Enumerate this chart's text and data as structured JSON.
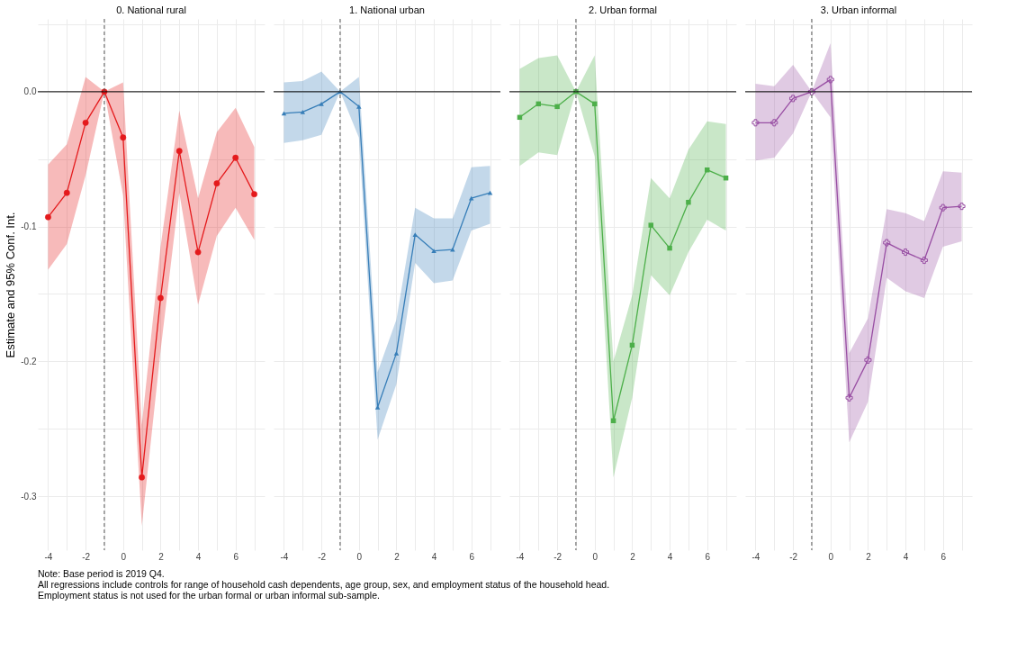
{
  "chart_data": [
    {
      "type": "line",
      "title": "0. National rural",
      "ylabel": "Estimate and 95% Conf. Int.",
      "xlim": [
        -4.55,
        7.55
      ],
      "ylim": [
        -0.34,
        0.054
      ],
      "xticks": [
        -4,
        {
          "value": -3,
          "label": null
        },
        -2,
        {
          "value": -1,
          "label": null
        },
        0,
        {
          "value": 1,
          "label": null
        },
        2,
        {
          "value": 3,
          "label": null
        },
        4,
        {
          "value": 5,
          "label": null
        },
        6,
        {
          "value": 7,
          "label": null
        }
      ],
      "yticks": [
        {
          "value": -0.3,
          "label": "-0.3"
        },
        {
          "value": -0.25,
          "label": null
        },
        {
          "value": -0.2,
          "label": "-0.2"
        },
        {
          "value": -0.15,
          "label": null
        },
        {
          "value": -0.1,
          "label": "-0.1"
        },
        {
          "value": -0.05,
          "label": null
        },
        {
          "value": 0,
          "label": "0.0"
        },
        {
          "value": 0.05,
          "label": null
        }
      ],
      "grid": true,
      "marker": "circle",
      "line_style": "solid",
      "ref_lines": [
        {
          "axis": "y",
          "value": 0,
          "color": "#000000",
          "line_style": "solid"
        },
        {
          "axis": "x",
          "value": -1,
          "color": "#555555",
          "line_style": "dashed"
        }
      ],
      "x": [
        -4,
        -3,
        -2,
        -1,
        0,
        1,
        2,
        3,
        4,
        5,
        6,
        7
      ],
      "series": [
        {
          "color": "#e41a1c",
          "values": [
            -0.093,
            -0.075,
            -0.023,
            0,
            -0.034,
            -0.286,
            -0.153,
            -0.044,
            -0.119,
            -0.068,
            -0.049,
            -0.076
          ],
          "lower": [
            -0.132,
            -0.113,
            -0.062,
            0,
            -0.077,
            -0.322,
            -0.192,
            -0.075,
            -0.158,
            -0.107,
            -0.086,
            -0.11
          ],
          "upper": [
            -0.054,
            -0.039,
            0.011,
            0,
            0.007,
            -0.247,
            -0.115,
            -0.014,
            -0.079,
            -0.03,
            -0.012,
            -0.041
          ]
        }
      ],
      "annotations": [
        "Note: Base period is 2019 Q4.",
        "All regressions include controls for range of household cash dependents, age group, sex, and employment status of the household head.",
        "Employment status is not used for the urban formal or urban informal sub-sample."
      ]
    },
    {
      "type": "line",
      "title": "1. National urban",
      "xlim": [
        -4.55,
        7.55
      ],
      "ylim": [
        -0.34,
        0.054
      ],
      "xticks": [
        -4,
        {
          "value": -3,
          "label": null
        },
        -2,
        {
          "value": -1,
          "label": null
        },
        0,
        {
          "value": 1,
          "label": null
        },
        2,
        {
          "value": 3,
          "label": null
        },
        4,
        {
          "value": 5,
          "label": null
        },
        6,
        {
          "value": 7,
          "label": null
        }
      ],
      "yticks": [
        {
          "value": -0.3,
          "label": null
        },
        {
          "value": -0.25,
          "label": null
        },
        {
          "value": -0.2,
          "label": null
        },
        {
          "value": -0.15,
          "label": null
        },
        {
          "value": -0.1,
          "label": null
        },
        {
          "value": -0.05,
          "label": null
        },
        {
          "value": 0,
          "label": null
        },
        {
          "value": 0.05,
          "label": null
        }
      ],
      "tick_labels": "x",
      "grid": true,
      "marker": "triangle",
      "line_style": "solid",
      "ref_lines": [
        {
          "axis": "y",
          "value": 0,
          "color": "#000000",
          "line_style": "solid"
        },
        {
          "axis": "x",
          "value": -1,
          "color": "#555555",
          "line_style": "dashed"
        }
      ],
      "x": [
        -4,
        -3,
        -2,
        -1,
        0,
        1,
        2,
        3,
        4,
        5,
        6,
        7
      ],
      "series": [
        {
          "color": "#377eb8",
          "values": [
            -0.016,
            -0.015,
            -0.009,
            0,
            -0.011,
            -0.234,
            -0.194,
            -0.106,
            -0.118,
            -0.117,
            -0.079,
            -0.075
          ],
          "lower": [
            -0.038,
            -0.036,
            -0.032,
            0,
            -0.034,
            -0.258,
            -0.217,
            -0.127,
            -0.142,
            -0.14,
            -0.103,
            -0.098
          ],
          "upper": [
            0.007,
            0.008,
            0.015,
            0,
            0.011,
            -0.208,
            -0.169,
            -0.086,
            -0.094,
            -0.094,
            -0.056,
            -0.055
          ]
        }
      ]
    },
    {
      "type": "line",
      "title": "2. Urban formal",
      "xlim": [
        -4.55,
        7.55
      ],
      "ylim": [
        -0.34,
        0.054
      ],
      "xticks": [
        -4,
        {
          "value": -3,
          "label": null
        },
        -2,
        {
          "value": -1,
          "label": null
        },
        0,
        {
          "value": 1,
          "label": null
        },
        2,
        {
          "value": 3,
          "label": null
        },
        4,
        {
          "value": 5,
          "label": null
        },
        6,
        {
          "value": 7,
          "label": null
        }
      ],
      "yticks": [
        {
          "value": -0.3,
          "label": null
        },
        {
          "value": -0.25,
          "label": null
        },
        {
          "value": -0.2,
          "label": null
        },
        {
          "value": -0.15,
          "label": null
        },
        {
          "value": -0.1,
          "label": null
        },
        {
          "value": -0.05,
          "label": null
        },
        {
          "value": 0,
          "label": null
        },
        {
          "value": 0.05,
          "label": null
        }
      ],
      "tick_labels": "x",
      "grid": true,
      "marker": "square",
      "line_style": "solid",
      "ref_lines": [
        {
          "axis": "y",
          "value": 0,
          "color": "#000000",
          "line_style": "solid"
        },
        {
          "axis": "x",
          "value": -1,
          "color": "#555555",
          "line_style": "dashed"
        }
      ],
      "x": [
        -4,
        -3,
        -2,
        -1,
        0,
        1,
        2,
        3,
        4,
        5,
        6,
        7
      ],
      "series": [
        {
          "color": "#4daf4a",
          "values": [
            -0.019,
            -0.009,
            -0.011,
            0,
            -0.009,
            -0.244,
            -0.188,
            -0.099,
            -0.116,
            -0.082,
            -0.058,
            -0.064
          ],
          "lower": [
            -0.055,
            -0.045,
            -0.047,
            0,
            -0.048,
            -0.286,
            -0.227,
            -0.136,
            -0.151,
            -0.119,
            -0.095,
            -0.103
          ],
          "upper": [
            0.017,
            0.025,
            0.027,
            0,
            0.027,
            -0.2,
            -0.151,
            -0.064,
            -0.079,
            -0.043,
            -0.022,
            -0.024
          ]
        }
      ]
    },
    {
      "type": "line",
      "title": "3. Urban informal",
      "xlim": [
        -4.55,
        7.55
      ],
      "ylim": [
        -0.34,
        0.054
      ],
      "xticks": [
        -4,
        {
          "value": -3,
          "label": null
        },
        -2,
        {
          "value": -1,
          "label": null
        },
        0,
        {
          "value": 1,
          "label": null
        },
        2,
        {
          "value": 3,
          "label": null
        },
        4,
        {
          "value": 5,
          "label": null
        },
        6,
        {
          "value": 7,
          "label": null
        }
      ],
      "yticks": [
        {
          "value": -0.3,
          "label": null
        },
        {
          "value": -0.25,
          "label": null
        },
        {
          "value": -0.2,
          "label": null
        },
        {
          "value": -0.15,
          "label": null
        },
        {
          "value": -0.1,
          "label": null
        },
        {
          "value": -0.05,
          "label": null
        },
        {
          "value": 0,
          "label": null
        },
        {
          "value": 0.05,
          "label": null
        }
      ],
      "tick_labels": "x",
      "grid": true,
      "marker": "cross",
      "line_style": "solid",
      "ref_lines": [
        {
          "axis": "y",
          "value": 0,
          "color": "#000000",
          "line_style": "solid"
        },
        {
          "axis": "x",
          "value": -1,
          "color": "#555555",
          "line_style": "dashed"
        }
      ],
      "x": [
        -4,
        -3,
        -2,
        -1,
        0,
        1,
        2,
        3,
        4,
        5,
        6,
        7
      ],
      "series": [
        {
          "color": "#984ea3",
          "values": [
            -0.023,
            -0.023,
            -0.005,
            0,
            0.009,
            -0.227,
            -0.199,
            -0.112,
            -0.119,
            -0.125,
            -0.086,
            -0.085
          ],
          "lower": [
            -0.051,
            -0.049,
            -0.031,
            0,
            -0.019,
            -0.26,
            -0.23,
            -0.138,
            -0.148,
            -0.153,
            -0.115,
            -0.111
          ],
          "upper": [
            0.006,
            0.004,
            0.02,
            0,
            0.036,
            -0.194,
            -0.168,
            -0.087,
            -0.09,
            -0.096,
            -0.059,
            -0.06
          ]
        }
      ]
    }
  ]
}
